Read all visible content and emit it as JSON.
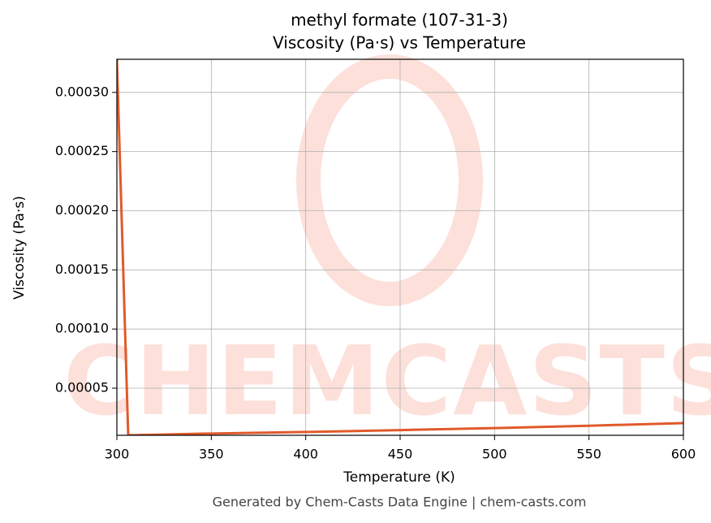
{
  "chart_data": {
    "type": "line",
    "title": "methyl formate (107-31-3)",
    "subtitle": "Viscosity (Pa·s) vs Temperature",
    "x_label": "Temperature (K)",
    "y_label": "Viscosity (Pa·s)",
    "watermark": "CHEMCASTS",
    "footer": "Generated by Chem-Casts Data Engine | chem-casts.com",
    "x": [
      300,
      306,
      350,
      400,
      450,
      500,
      550,
      600
    ],
    "series": [
      {
        "name": "Viscosity",
        "color": "#e05a2b",
        "values": [
          0.000328,
          1.02e-05,
          1.17e-05,
          1.3e-05,
          1.46e-05,
          1.63e-05,
          1.83e-05,
          2.05e-05
        ]
      }
    ],
    "xlim": [
      300,
      600
    ],
    "ylim": [
      1.02e-05,
      0.000328
    ],
    "xticks": [
      300,
      350,
      400,
      450,
      500,
      550,
      600
    ],
    "yticks": [
      {
        "value": 5e-05,
        "label": "0.00005"
      },
      {
        "value": 0.0001,
        "label": "0.00010"
      },
      {
        "value": 0.00015,
        "label": "0.00015"
      },
      {
        "value": 0.0002,
        "label": "0.00020"
      },
      {
        "value": 0.00025,
        "label": "0.00025"
      },
      {
        "value": 0.0003,
        "label": "0.00030"
      }
    ],
    "grid": true
  }
}
